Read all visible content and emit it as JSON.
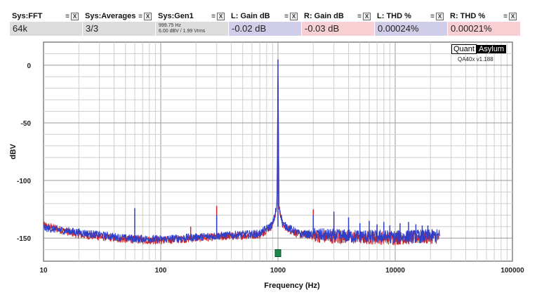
{
  "widgets": [
    {
      "title": "Sys:FFT",
      "value": "64k",
      "color": "#dcdcdc"
    },
    {
      "title": "Sys:Averages",
      "value": "3/3",
      "color": "#dcdcdc"
    },
    {
      "title": "Sys:Gen1",
      "line1": "999.75 Hz",
      "line2": "6.00 dBV  / 1.99 Vrms",
      "color": "#dcdcdc"
    },
    {
      "title": "L: Gain dB",
      "value": "-0.02 dB",
      "color": "#cfcde8"
    },
    {
      "title": "R: Gain dB",
      "value": "-0.03 dB",
      "color": "#f8cfd3"
    },
    {
      "title": "L: THD %",
      "value": "0.00024%",
      "color": "#cfcde8"
    },
    {
      "title": "R: THD %",
      "value": "0.00021%",
      "color": "#f8cfd3"
    }
  ],
  "menu_icon": "hamburger-icon",
  "close_icon": "close-icon",
  "brand": {
    "part1": "Quant",
    "part2": "Asylum",
    "version": "QA40x v1.188"
  },
  "chart_data": {
    "type": "line",
    "xlabel": "Frequency (Hz)",
    "ylabel": "dBV",
    "xscale": "log",
    "xlim": [
      10,
      100000
    ],
    "ylim": [
      -170,
      20
    ],
    "x_ticks": [
      "10",
      "100",
      "1000",
      "10000",
      "100000"
    ],
    "y_ticks": [
      "0",
      "-50",
      "-100",
      "-150"
    ],
    "grid": true,
    "marker": {
      "x": 1000,
      "y": -163,
      "color": "#1e8a4a"
    },
    "series": [
      {
        "color": "#2e3fc8",
        "noise_floor": [
          [
            10,
            -141
          ],
          [
            20,
            -145
          ],
          [
            50,
            -150
          ],
          [
            100,
            -151
          ],
          [
            300,
            -148
          ],
          [
            700,
            -146
          ],
          [
            900,
            -138
          ],
          [
            980,
            -122
          ],
          [
            1000,
            5
          ],
          [
            1020,
            -122
          ],
          [
            1100,
            -138
          ],
          [
            1500,
            -146
          ],
          [
            3000,
            -148
          ],
          [
            10000,
            -149
          ],
          [
            24000,
            -148
          ]
        ],
        "spurs": [
          [
            60,
            -124
          ],
          [
            300,
            -130
          ],
          [
            2000,
            -130
          ],
          [
            3000,
            -127
          ],
          [
            4000,
            -132
          ],
          [
            5000,
            -137
          ],
          [
            6000,
            -135
          ],
          [
            7000,
            -138
          ],
          [
            8000,
            -136
          ],
          [
            9000,
            -139
          ],
          [
            11000,
            -137
          ],
          [
            13000,
            -136
          ],
          [
            15000,
            -138
          ],
          [
            17000,
            -139
          ],
          [
            19000,
            -139
          ]
        ]
      },
      {
        "color": "#d22a2a",
        "noise_floor": [
          [
            10,
            -139
          ],
          [
            20,
            -147
          ],
          [
            50,
            -151
          ],
          [
            100,
            -152
          ],
          [
            300,
            -149
          ],
          [
            700,
            -147
          ],
          [
            900,
            -139
          ],
          [
            980,
            -123
          ],
          [
            1000,
            5
          ],
          [
            1020,
            -123
          ],
          [
            1100,
            -139
          ],
          [
            1500,
            -147
          ],
          [
            3000,
            -149
          ],
          [
            10000,
            -150
          ],
          [
            24000,
            -149
          ]
        ],
        "spurs": [
          [
            180,
            -140
          ],
          [
            300,
            -122
          ],
          [
            2000,
            -125
          ],
          [
            3000,
            -131
          ],
          [
            5000,
            -140
          ],
          [
            7000,
            -139
          ]
        ]
      }
    ]
  }
}
